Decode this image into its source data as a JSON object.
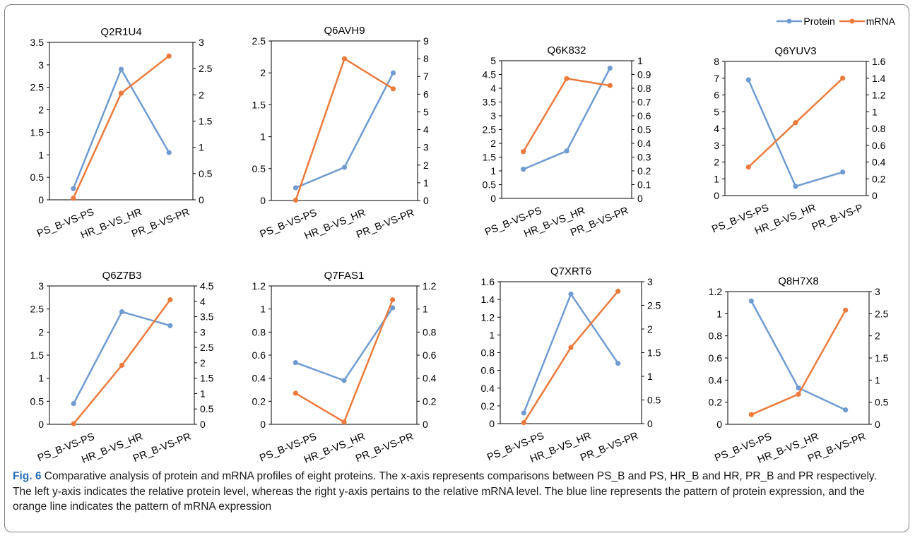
{
  "legend": {
    "protein_label": "Protein",
    "mrna_label": "mRNA"
  },
  "colors": {
    "protein": "#6f9bd1",
    "mrna": "#ec7a3c",
    "axis": "#000000"
  },
  "caption": {
    "label": "Fig. 6",
    "text": " Comparative analysis of protein and mRNA profiles of eight proteins. The x-axis represents comparisons between PS_B and PS, HR_B and HR, PR_B and PR respectively. The left y-axis indicates the relative protein level, whereas the right y-axis pertains to the relative mRNA level. The blue line represents the pattern of protein expression, and the orange line indicates the pattern of mRNA expression"
  },
  "chart_data": [
    {
      "type": "line",
      "title": "Q2R1U4",
      "categories": [
        "PS_B-VS-PS",
        "HR_B-VS_HR",
        "PR_B-VS-PR"
      ],
      "y_left": {
        "ylim": [
          0,
          3.5
        ],
        "ticks": [
          "0",
          "0.5",
          "1",
          "1.5",
          "2",
          "2.5",
          "3",
          "3.5"
        ]
      },
      "y_right": {
        "ylim": [
          0,
          3
        ],
        "ticks": [
          "0",
          "0.5",
          "1",
          "1.5",
          "2",
          "2.5",
          "3"
        ]
      },
      "series": [
        {
          "name": "Protein",
          "axis": "left",
          "values": [
            0.25,
            2.9,
            1.05
          ]
        },
        {
          "name": "mRNA",
          "axis": "right",
          "values": [
            0.03,
            2.03,
            2.74
          ]
        }
      ]
    },
    {
      "type": "line",
      "title": "Q6AVH9",
      "categories": [
        "PS_B-VS-PS",
        "HR_B-VS_HR",
        "PR_B-VS-PR"
      ],
      "y_left": {
        "ylim": [
          0,
          2.5
        ],
        "ticks": [
          "0",
          "0.5",
          "1",
          "1.5",
          "2",
          "2.5"
        ]
      },
      "y_right": {
        "ylim": [
          0,
          9
        ],
        "ticks": [
          "0",
          "1",
          "2",
          "3",
          "4",
          "5",
          "6",
          "7",
          "8",
          "9"
        ]
      },
      "series": [
        {
          "name": "Protein",
          "axis": "left",
          "values": [
            0.2,
            0.52,
            2.0
          ]
        },
        {
          "name": "mRNA",
          "axis": "right",
          "values": [
            0.02,
            8.0,
            6.3
          ]
        }
      ]
    },
    {
      "type": "line",
      "title": "Q6K832",
      "categories": [
        "PS_B-VS-PS",
        "HR_B-VS_HR",
        "PR_B-VS-PR"
      ],
      "y_left": {
        "ylim": [
          0,
          5
        ],
        "ticks": [
          "0",
          "0.5",
          "1",
          "1.5",
          "2",
          "2.5",
          "3",
          "3.5",
          "4",
          "4.5",
          "5"
        ]
      },
      "y_right": {
        "ylim": [
          0,
          1
        ],
        "ticks": [
          "0",
          "0.1",
          "0.2",
          "0.3",
          "0.4",
          "0.5",
          "0.6",
          "0.7",
          "0.8",
          "0.9",
          "1"
        ]
      },
      "series": [
        {
          "name": "Protein",
          "axis": "left",
          "values": [
            1.06,
            1.72,
            4.73
          ]
        },
        {
          "name": "mRNA",
          "axis": "right",
          "values": [
            0.34,
            0.87,
            0.82
          ]
        }
      ]
    },
    {
      "type": "line",
      "title": "Q6YUV3",
      "categories": [
        "PS_B-VS-PS",
        "HR_B-VS_HR",
        "PR_B-VS-P"
      ],
      "y_left": {
        "ylim": [
          0,
          8
        ],
        "ticks": [
          "0",
          "1",
          "2",
          "3",
          "4",
          "5",
          "6",
          "7",
          "8"
        ]
      },
      "y_right": {
        "ylim": [
          0,
          1.6
        ],
        "ticks": [
          "0",
          "0.2",
          "0.4",
          "0.6",
          "0.8",
          "1",
          "1.2",
          "1.4",
          "1.6"
        ]
      },
      "series": [
        {
          "name": "Protein",
          "axis": "left",
          "values": [
            6.9,
            0.55,
            1.4
          ]
        },
        {
          "name": "mRNA",
          "axis": "right",
          "values": [
            0.34,
            0.87,
            1.4
          ]
        }
      ]
    },
    {
      "type": "line",
      "title": "Q6Z7B3",
      "categories": [
        "PS_B-VS-PS",
        "HR_B-VS_HR",
        "PR_B-VS-PR"
      ],
      "y_left": {
        "ylim": [
          0,
          3
        ],
        "ticks": [
          "0",
          "0.5",
          "1",
          "1.5",
          "2",
          "2.5",
          "3"
        ]
      },
      "y_right": {
        "ylim": [
          0,
          4.5
        ],
        "ticks": [
          "0",
          "0.5",
          "1",
          "1.5",
          "2",
          "2.5",
          "3",
          "3.5",
          "4",
          "4.5"
        ]
      },
      "series": [
        {
          "name": "Protein",
          "axis": "left",
          "values": [
            0.45,
            2.44,
            2.14
          ]
        },
        {
          "name": "mRNA",
          "axis": "right",
          "values": [
            0.02,
            1.92,
            4.05
          ]
        }
      ]
    },
    {
      "type": "line",
      "title": "Q7FAS1",
      "categories": [
        "PS_B-VS-PS",
        "HR_B-VS_HR",
        "PR_B-VS-PR"
      ],
      "y_left": {
        "ylim": [
          0,
          1.2
        ],
        "ticks": [
          "0",
          "0.2",
          "0.4",
          "0.6",
          "0.8",
          "1",
          "1.2"
        ]
      },
      "y_right": {
        "ylim": [
          0,
          1.2
        ],
        "ticks": [
          "0",
          "0.2",
          "0.4",
          "0.6",
          "0.8",
          "1",
          "1.2"
        ]
      },
      "series": [
        {
          "name": "Protein",
          "axis": "left",
          "values": [
            0.535,
            0.38,
            1.01
          ]
        },
        {
          "name": "mRNA",
          "axis": "right",
          "values": [
            0.27,
            0.02,
            1.08
          ]
        }
      ]
    },
    {
      "type": "line",
      "title": "Q7XRT6",
      "categories": [
        "PS_B-VS-PS",
        "HR_B-VS_HR",
        "PR_B-VS-PR"
      ],
      "y_left": {
        "ylim": [
          0,
          1.6
        ],
        "ticks": [
          "0",
          "0.2",
          "0.4",
          "0.6",
          "0.8",
          "1",
          "1.2",
          "1.4",
          "1.6"
        ]
      },
      "y_right": {
        "ylim": [
          0,
          3
        ],
        "ticks": [
          "0",
          "0.5",
          "1",
          "1.5",
          "2",
          "2.5",
          "3"
        ]
      },
      "series": [
        {
          "name": "Protein",
          "axis": "left",
          "values": [
            0.12,
            1.46,
            0.68
          ]
        },
        {
          "name": "mRNA",
          "axis": "right",
          "values": [
            0.02,
            1.61,
            2.8
          ]
        }
      ]
    },
    {
      "type": "line",
      "title": "Q8H7X8",
      "categories": [
        "PS_B-VS-PS",
        "HR_B-VS_HR",
        "PR_B-VS-PR"
      ],
      "y_left": {
        "ylim": [
          0,
          1.2
        ],
        "ticks": [
          "0",
          "0.2",
          "0.4",
          "0.6",
          "0.8",
          "1",
          "1.2"
        ]
      },
      "y_right": {
        "ylim": [
          0,
          3
        ],
        "ticks": [
          "0",
          "0.5",
          "1",
          "1.5",
          "2",
          "2.5",
          "3"
        ]
      },
      "series": [
        {
          "name": "Protein",
          "axis": "left",
          "values": [
            1.115,
            0.33,
            0.13
          ]
        },
        {
          "name": "mRNA",
          "axis": "right",
          "values": [
            0.22,
            0.68,
            2.58
          ]
        }
      ]
    }
  ]
}
